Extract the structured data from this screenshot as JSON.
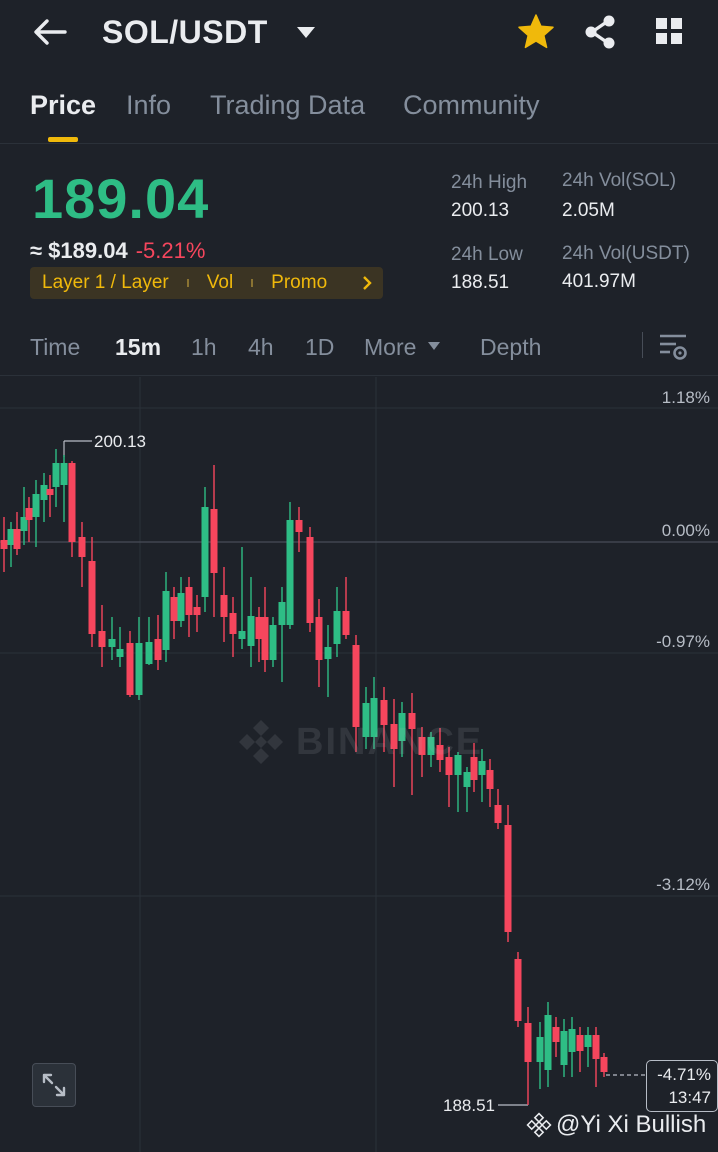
{
  "header": {
    "pair": "SOL/USDT",
    "back_icon": "arrow-left-icon",
    "favorite_icon": "star-icon",
    "share_icon": "share-icon",
    "menu_icon": "grid-icon",
    "favorite_color": "#f0b90b"
  },
  "tabs": [
    {
      "label": "Price",
      "active": true
    },
    {
      "label": "Info",
      "active": false
    },
    {
      "label": "Trading Data",
      "active": false
    },
    {
      "label": "Community",
      "active": false
    }
  ],
  "price": {
    "last": "189.04",
    "usd": "≈ $189.04",
    "change": "-5.21%",
    "up_color": "#2ebd85",
    "down_color": "#f6465d",
    "tags": [
      "Layer 1 / Layer",
      "Vol",
      "Promo"
    ]
  },
  "stats": {
    "high_label": "24h High",
    "high_value": "200.13",
    "low_label": "24h Low",
    "low_value": "188.51",
    "vol_base_label": "24h Vol(SOL)",
    "vol_base_value": "2.05M",
    "vol_quote_label": "24h Vol(USDT)",
    "vol_quote_value": "401.97M"
  },
  "intervals": {
    "items": [
      "Time",
      "15m",
      "1h",
      "4h",
      "1D"
    ],
    "active": "15m",
    "more": "More",
    "depth": "Depth"
  },
  "chart": {
    "y_labels": [
      "1.18%",
      "0.00%",
      "-0.97%",
      "-3.12%"
    ],
    "high_marker": "200.13",
    "low_marker": "188.51",
    "current_pct": "-4.71%",
    "countdown": "13:47",
    "watermark": "BINANCE"
  },
  "credit": "@Yi Xi Bullish"
}
